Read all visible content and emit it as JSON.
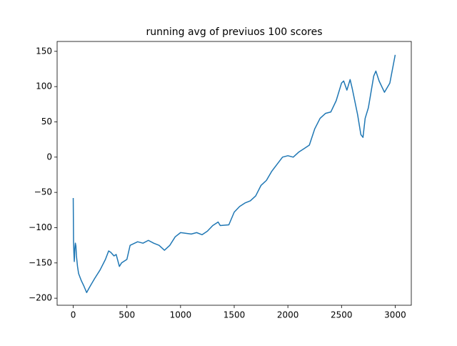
{
  "chart_data": {
    "type": "line",
    "title": "running avg of previuos 100 scores",
    "x": [
      0,
      3,
      6,
      10,
      15,
      20,
      25,
      30,
      40,
      50,
      75,
      100,
      125,
      150,
      200,
      250,
      300,
      330,
      350,
      380,
      400,
      430,
      450,
      500,
      530,
      600,
      650,
      700,
      750,
      800,
      850,
      900,
      950,
      1000,
      1050,
      1100,
      1150,
      1200,
      1250,
      1300,
      1350,
      1370,
      1450,
      1500,
      1550,
      1600,
      1650,
      1700,
      1750,
      1800,
      1850,
      1900,
      1950,
      2000,
      2050,
      2100,
      2150,
      2200,
      2250,
      2300,
      2350,
      2400,
      2450,
      2500,
      2520,
      2550,
      2580,
      2600,
      2650,
      2680,
      2700,
      2720,
      2750,
      2800,
      2820,
      2850,
      2900,
      2950,
      3000
    ],
    "series": [
      {
        "name": "running avg",
        "color": "#1f77b4",
        "values": [
          -58,
          -120,
          -135,
          -148,
          -130,
          -122,
          -126,
          -140,
          -155,
          -165,
          -175,
          -183,
          -192,
          -185,
          -172,
          -160,
          -145,
          -133,
          -135,
          -140,
          -138,
          -155,
          -150,
          -145,
          -125,
          -120,
          -122,
          -118,
          -122,
          -125,
          -132,
          -125,
          -113,
          -107,
          -108,
          -109,
          -107,
          -110,
          -105,
          -97,
          -92,
          -97,
          -96,
          -78,
          -70,
          -65,
          -62,
          -55,
          -40,
          -33,
          -20,
          -10,
          0,
          2,
          0,
          7,
          12,
          17,
          40,
          55,
          62,
          64,
          80,
          105,
          108,
          95,
          110,
          97,
          60,
          32,
          28,
          55,
          70,
          115,
          122,
          108,
          92,
          105,
          145
        ]
      }
    ],
    "xlim": [
      -150,
      3150
    ],
    "ylim": [
      -210,
      164
    ],
    "xticks": [
      0,
      500,
      1000,
      1500,
      2000,
      2500,
      3000
    ],
    "yticks": [
      {
        "value": -200,
        "label": "−200"
      },
      {
        "value": -150,
        "label": "−150"
      },
      {
        "value": -100,
        "label": "−100"
      },
      {
        "value": -50,
        "label": "−50"
      },
      0,
      50,
      100,
      150
    ]
  }
}
